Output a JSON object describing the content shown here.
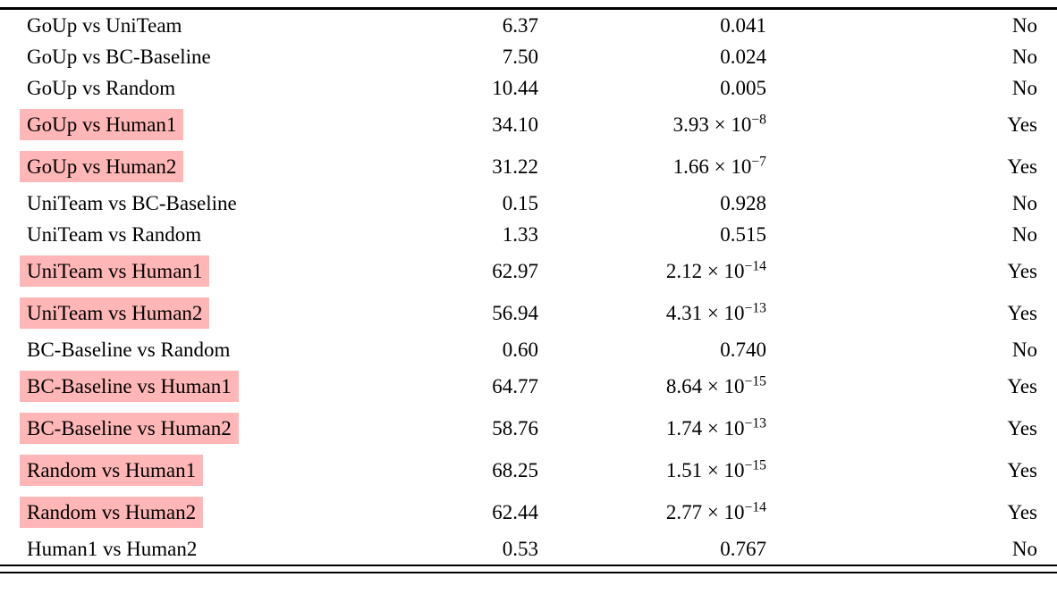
{
  "table": {
    "highlight_color": "#ffb6b6",
    "rows": [
      {
        "pair": "GoUp vs UniTeam",
        "stat": "6.37",
        "p": "0.041",
        "sig": "No",
        "highlight": false
      },
      {
        "pair": "GoUp vs BC-Baseline",
        "stat": "7.50",
        "p": "0.024",
        "sig": "No",
        "highlight": false
      },
      {
        "pair": "GoUp vs Random",
        "stat": "10.44",
        "p": "0.005",
        "sig": "No",
        "highlight": false
      },
      {
        "pair": "GoUp vs Human1",
        "stat": "34.10",
        "p": "3.93 × 10",
        "p_exp": "−8",
        "sig": "Yes",
        "highlight": true
      },
      {
        "pair": "GoUp vs Human2",
        "stat": "31.22",
        "p": "1.66 × 10",
        "p_exp": "−7",
        "sig": "Yes",
        "highlight": true
      },
      {
        "pair": "UniTeam vs BC-Baseline",
        "stat": "0.15",
        "p": "0.928",
        "sig": "No",
        "highlight": false
      },
      {
        "pair": "UniTeam vs Random",
        "stat": "1.33",
        "p": "0.515",
        "sig": "No",
        "highlight": false
      },
      {
        "pair": "UniTeam vs Human1",
        "stat": "62.97",
        "p": "2.12 × 10",
        "p_exp": "−14",
        "sig": "Yes",
        "highlight": true
      },
      {
        "pair": "UniTeam vs Human2",
        "stat": "56.94",
        "p": "4.31 × 10",
        "p_exp": "−13",
        "sig": "Yes",
        "highlight": true
      },
      {
        "pair": "BC-Baseline vs Random",
        "stat": "0.60",
        "p": "0.740",
        "sig": "No",
        "highlight": false
      },
      {
        "pair": "BC-Baseline vs Human1",
        "stat": "64.77",
        "p": "8.64 × 10",
        "p_exp": "−15",
        "sig": "Yes",
        "highlight": true
      },
      {
        "pair": "BC-Baseline vs Human2",
        "stat": "58.76",
        "p": "1.74 × 10",
        "p_exp": "−13",
        "sig": "Yes",
        "highlight": true
      },
      {
        "pair": "Random vs Human1",
        "stat": "68.25",
        "p": "1.51 × 10",
        "p_exp": "−15",
        "sig": "Yes",
        "highlight": true
      },
      {
        "pair": "Random vs Human2",
        "stat": "62.44",
        "p": "2.77 × 10",
        "p_exp": "−14",
        "sig": "Yes",
        "highlight": true
      },
      {
        "pair": "Human1 vs Human2",
        "stat": "0.53",
        "p": "0.767",
        "sig": "No",
        "highlight": false
      }
    ]
  }
}
